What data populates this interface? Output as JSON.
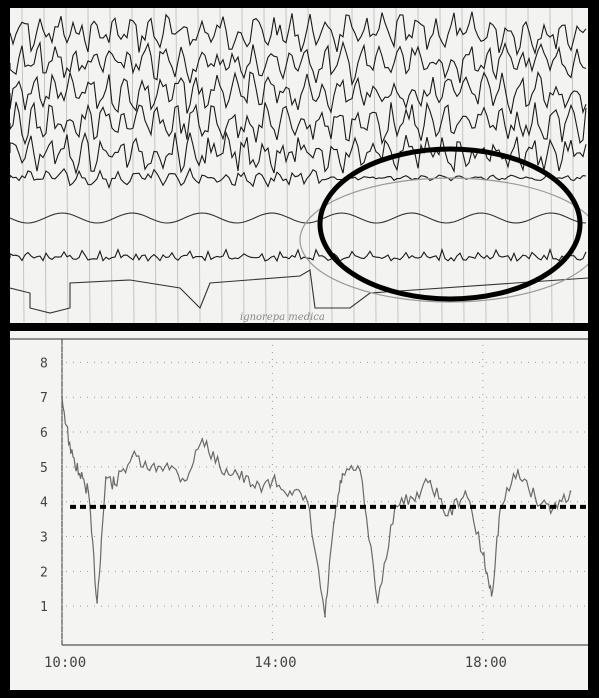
{
  "eeg_strip": {
    "description_text": "",
    "watermark": "ignorepa medica",
    "colors": {
      "paper": "#f3f3f1",
      "ink": "#1a1a1a",
      "highlight_ellipse": "#000000",
      "faint_ellipse": "#9a9a9a"
    }
  },
  "chart_data": {
    "type": "line",
    "title": "",
    "xlabel": "",
    "ylabel": "",
    "ylim": [
      0,
      8.5
    ],
    "yticks": [
      "1",
      "2",
      "3",
      "4",
      "5",
      "6",
      "7",
      "8"
    ],
    "xticks": [
      "10:00",
      "14:00",
      "18:00"
    ],
    "grid": "dotted",
    "threshold": {
      "value": 3.85,
      "style": "dashed-black"
    },
    "series": [
      {
        "x": [
          "10:00",
          "10:10",
          "10:20",
          "10:30",
          "10:40",
          "10:50",
          "11:00",
          "11:20",
          "11:40",
          "12:00",
          "12:20",
          "12:40",
          "13:00",
          "13:20",
          "13:40",
          "14:00",
          "14:20",
          "14:40",
          "15:00",
          "15:10",
          "15:20",
          "15:40",
          "16:00",
          "16:20",
          "16:40",
          "17:00",
          "17:20",
          "17:40",
          "18:00",
          "18:10",
          "18:20",
          "18:40",
          "19:00",
          "19:20",
          "19:40"
        ],
        "values": [
          7.0,
          5.4,
          4.8,
          4.3,
          1.1,
          4.7,
          4.5,
          5.3,
          4.9,
          5.1,
          4.6,
          5.8,
          5.0,
          4.8,
          4.4,
          4.6,
          4.3,
          4.0,
          0.7,
          3.4,
          4.8,
          4.9,
          1.1,
          3.9,
          4.1,
          4.6,
          3.6,
          4.3,
          2.5,
          1.3,
          3.8,
          4.9,
          4.1,
          3.8,
          4.3
        ]
      }
    ],
    "colors": {
      "line": "#6a6a6a",
      "grid": "#9a9a9a",
      "axis": "#555555"
    }
  }
}
